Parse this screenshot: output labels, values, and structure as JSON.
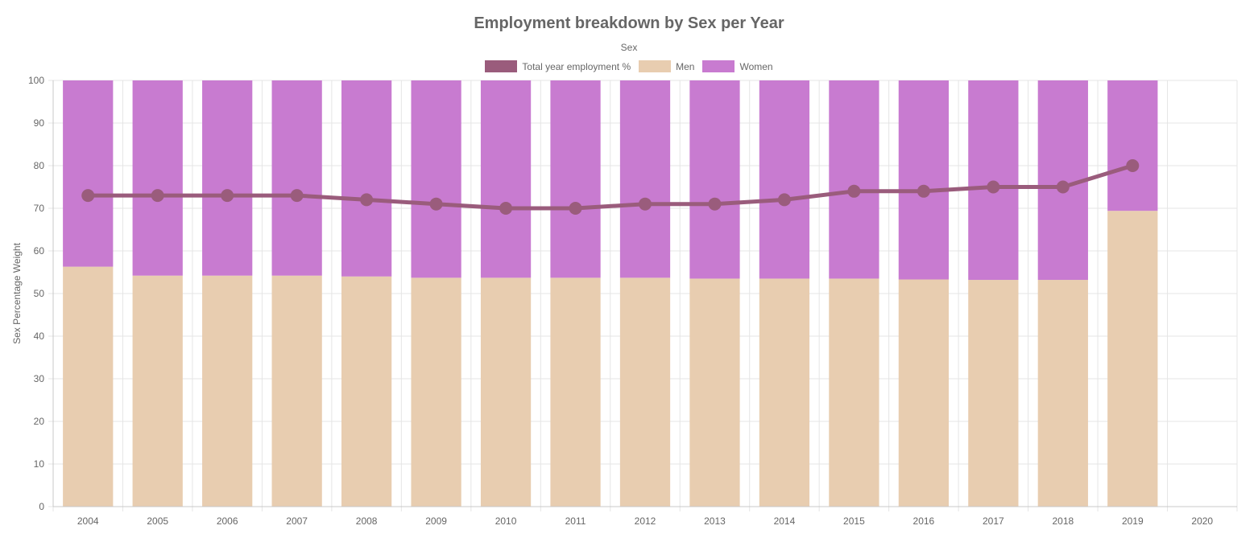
{
  "chart_data": {
    "type": "bar",
    "stacked": true,
    "title": "Employment breakdown by Sex per Year",
    "legend_title": "Sex",
    "legend_position": "top",
    "ylabel": "Sex Percentage Weight",
    "xlabel": "",
    "ylim": [
      0,
      100
    ],
    "yticks": [
      0,
      10,
      20,
      30,
      40,
      50,
      60,
      70,
      80,
      90,
      100
    ],
    "grid": true,
    "categories": [
      "2004",
      "2005",
      "2006",
      "2007",
      "2008",
      "2009",
      "2010",
      "2011",
      "2012",
      "2013",
      "2014",
      "2015",
      "2016",
      "2017",
      "2018",
      "2019",
      "2020"
    ],
    "series": [
      {
        "name": "Total year employment %",
        "type": "line",
        "color": "#9a5c7c",
        "values": [
          73,
          73,
          73,
          73,
          72,
          71,
          70,
          70,
          71,
          71,
          72,
          74,
          74,
          75,
          75,
          80,
          null
        ]
      },
      {
        "name": "Men",
        "type": "bar",
        "color": "#e8cdb0",
        "values": [
          56.3,
          54.2,
          54.2,
          54.2,
          54.0,
          53.7,
          53.7,
          53.7,
          53.7,
          53.5,
          53.5,
          53.5,
          53.3,
          53.2,
          53.2,
          69.4,
          null
        ]
      },
      {
        "name": "Women",
        "type": "bar",
        "color": "#c87bd0",
        "values": [
          43.7,
          45.8,
          45.8,
          45.8,
          46.0,
          46.3,
          46.3,
          46.3,
          46.3,
          46.5,
          46.5,
          46.5,
          46.7,
          46.8,
          46.8,
          30.6,
          null
        ]
      }
    ]
  }
}
